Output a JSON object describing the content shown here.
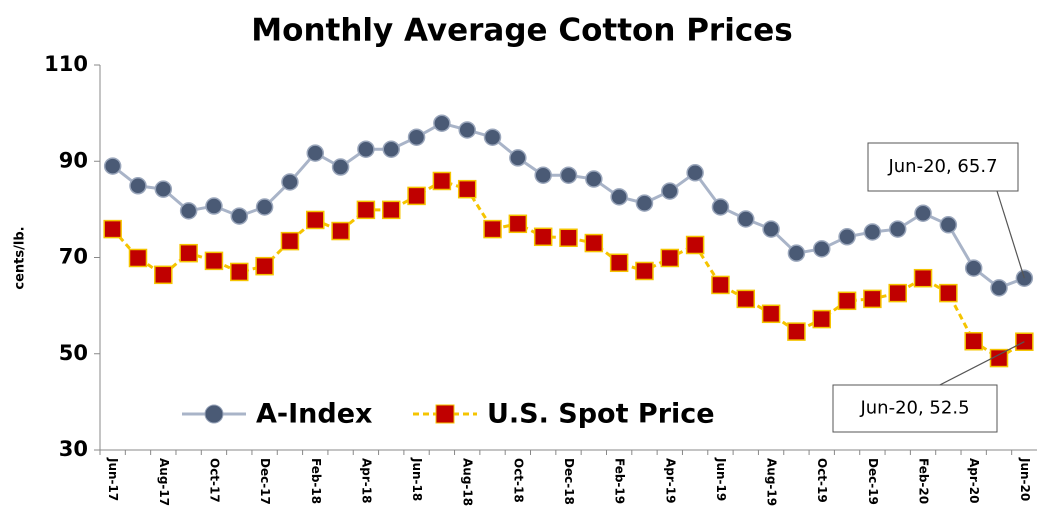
{
  "chart_data": {
    "type": "line",
    "title": "Monthly Average Cotton Prices",
    "y_label": "cents/lb.",
    "categories": [
      "Jun-17",
      null,
      "Aug-17",
      null,
      "Oct-17",
      null,
      "Dec-17",
      null,
      "Feb-18",
      null,
      "Apr-18",
      null,
      "Jun-18",
      null,
      "Aug-18",
      null,
      "Oct-18",
      null,
      "Dec-18",
      null,
      "Feb-19",
      null,
      "Apr-19",
      null,
      "Jun-19",
      null,
      "Aug-19",
      null,
      "Oct-19",
      null,
      "Dec-19",
      null,
      "Feb-20",
      null,
      "Apr-20",
      null,
      "Jun-20"
    ],
    "series": [
      {
        "name": "A-Index",
        "color": "#4a5a75",
        "line_color": "#a9b4c8",
        "marker": "circle",
        "values": [
          89.0,
          84.9,
          84.2,
          79.7,
          80.7,
          78.6,
          80.5,
          85.7,
          91.7,
          88.8,
          92.5,
          92.5,
          95.0,
          97.9,
          96.5,
          95.0,
          90.7,
          87.1,
          87.1,
          86.3,
          82.6,
          81.3,
          83.8,
          87.6,
          80.5,
          78.0,
          75.9,
          70.9,
          71.8,
          74.3,
          75.3,
          75.9,
          79.2,
          76.8,
          67.8,
          63.7,
          65.7
        ]
      },
      {
        "name": "U.S. Spot Price",
        "color": "#c00000",
        "line_color": "#f5c400",
        "marker": "square",
        "values": [
          75.9,
          69.9,
          66.4,
          70.9,
          69.3,
          67.0,
          68.2,
          73.4,
          77.8,
          75.5,
          79.9,
          79.9,
          82.8,
          85.9,
          84.2,
          75.9,
          77.0,
          74.3,
          74.1,
          73.0,
          68.9,
          67.2,
          69.9,
          72.6,
          64.3,
          61.4,
          58.3,
          54.6,
          57.2,
          61.0,
          61.4,
          62.6,
          65.7,
          62.6,
          52.6,
          49.1,
          52.5
        ]
      }
    ],
    "ylim": [
      30,
      110
    ],
    "yticks": [
      30,
      50,
      70,
      90,
      110
    ],
    "grid": false,
    "legend": "bottom-left",
    "annotations": [
      {
        "text": "Jun-20, 65.7"
      },
      {
        "text": "Jun-20, 52.5"
      }
    ]
  }
}
